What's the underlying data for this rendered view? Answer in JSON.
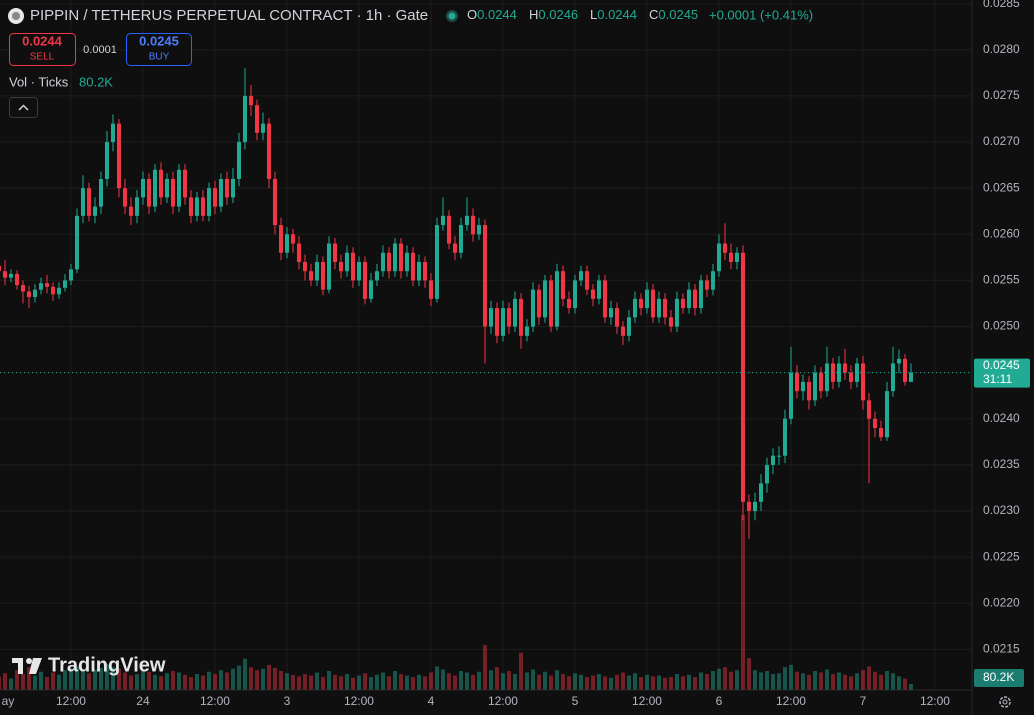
{
  "header": {
    "title": "PIPPIN / TETHERUS PERPETUAL CONTRACT · 1h · Gate",
    "ohlc_labels": [
      "O",
      "H",
      "L",
      "C"
    ],
    "change": "+0.0001 (+0.41%)",
    "sell_price": "0.0244",
    "sell_label": "SELL",
    "spread": "0.0001",
    "buy_price": "0.0245",
    "buy_label": "BUY",
    "volume_title": "Vol · Ticks",
    "countdown": "31:11",
    "watermark": "TradingView"
  },
  "chart_data": {
    "type": "candlestick",
    "up_color": "#22ab94",
    "down_color": "#f23645",
    "grid": true,
    "xlim": [
      0.17,
      162.17
    ],
    "xticks": [
      {
        "value": 0,
        "label": "ay"
      },
      {
        "value": 12,
        "label": "12:00"
      },
      24,
      {
        "value": 36,
        "label": "12:00"
      },
      {
        "value": 48,
        "label": "3"
      },
      {
        "value": 60,
        "label": "12:00"
      },
      {
        "value": 72,
        "label": "4"
      },
      {
        "value": 84,
        "label": "12:00"
      },
      {
        "value": 96,
        "label": "5"
      },
      {
        "value": 108,
        "label": "12:00"
      },
      {
        "value": 120,
        "label": "6"
      },
      {
        "value": 132,
        "label": "12:00"
      },
      {
        "value": 144,
        "label": "7"
      },
      {
        "value": 156,
        "label": "12:00"
      }
    ],
    "ylim": [
      0.02106,
      0.02854
    ],
    "yticks": [
      0.0215,
      {
        "value": 0.022,
        "label": "0.0220"
      },
      0.0225,
      {
        "value": 0.023,
        "label": "0.0230"
      },
      0.0235,
      {
        "value": 0.024,
        "label": "0.0240"
      },
      0.0245,
      {
        "value": 0.025,
        "label": "0.0250"
      },
      0.0255,
      {
        "value": 0.026,
        "label": "0.0260"
      },
      0.0265,
      {
        "value": 0.027,
        "label": "0.0270"
      },
      0.0275,
      {
        "value": 0.028,
        "label": "0.0280"
      },
      0.0285
    ],
    "open": [
      0.02566,
      0.0256,
      0.02553,
      0.02557,
      0.02545,
      0.02538,
      0.02532,
      0.0254,
      0.02547,
      0.02543,
      0.02535,
      0.02542,
      0.0255,
      0.02562,
      0.0262,
      0.0265,
      0.0262,
      0.0263,
      0.0266,
      0.027,
      0.0272,
      0.0265,
      0.0263,
      0.0262,
      0.0264,
      0.0266,
      0.0263,
      0.0267,
      0.0264,
      0.0266,
      0.0263,
      0.0267,
      0.0264,
      0.0262,
      0.0264,
      0.0262,
      0.0265,
      0.0263,
      0.0266,
      0.0264,
      0.0266,
      0.027,
      0.0275,
      0.0274,
      0.0271,
      0.0272,
      0.0266,
      0.0261,
      0.0258,
      0.026,
      0.0259,
      0.0257,
      0.0256,
      0.0255,
      0.0257,
      0.0254,
      0.0259,
      0.0257,
      0.0256,
      0.0258,
      0.0255,
      0.0257,
      0.0253,
      0.0255,
      0.0256,
      0.0258,
      0.0256,
      0.0259,
      0.0256,
      0.0258,
      0.0255,
      0.0257,
      0.0255,
      0.0253,
      0.0261,
      0.0262,
      0.0259,
      0.0258,
      0.0261,
      0.0262,
      0.026,
      0.0261,
      0.025,
      0.0252,
      0.0249,
      0.0252,
      0.025,
      0.0253,
      0.0249,
      0.025,
      0.0254,
      0.0251,
      0.0255,
      0.025,
      0.0256,
      0.0253,
      0.0252,
      0.0255,
      0.0256,
      0.0254,
      0.0253,
      0.0255,
      0.0251,
      0.0252,
      0.025,
      0.0249,
      0.0251,
      0.0253,
      0.0252,
      0.0254,
      0.0251,
      0.0253,
      0.0251,
      0.025,
      0.0253,
      0.0252,
      0.0254,
      0.0252,
      0.0255,
      0.0254,
      0.0256,
      0.0259,
      0.0258,
      0.0257,
      0.0258,
      0.0231,
      0.023,
      0.0231,
      0.0233,
      0.0235,
      0.0236,
      0.0236,
      0.024,
      0.0245,
      0.0243,
      0.0244,
      0.0242,
      0.0245,
      0.0243,
      0.0246,
      0.0244,
      0.0246,
      0.0245,
      0.0244,
      0.0246,
      0.0242,
      0.024,
      0.0239,
      0.0238,
      0.0243,
      0.0246,
      0.02465,
      0.0244
    ],
    "high": [
      0.02575,
      0.02572,
      0.02562,
      0.02561,
      0.0255,
      0.02544,
      0.02546,
      0.02553,
      0.02556,
      0.02548,
      0.02548,
      0.02557,
      0.02568,
      0.02628,
      0.02664,
      0.02656,
      0.0264,
      0.02668,
      0.02712,
      0.0273,
      0.02725,
      0.0266,
      0.0264,
      0.02648,
      0.02668,
      0.02666,
      0.02676,
      0.02678,
      0.02666,
      0.02668,
      0.02676,
      0.02676,
      0.02648,
      0.02646,
      0.02648,
      0.02656,
      0.02658,
      0.02666,
      0.02668,
      0.02672,
      0.0271,
      0.0278,
      0.02762,
      0.02746,
      0.02732,
      0.02726,
      0.02668,
      0.02618,
      0.02608,
      0.02606,
      0.02598,
      0.02578,
      0.02568,
      0.02578,
      0.02576,
      0.02598,
      0.02596,
      0.02578,
      0.02588,
      0.02586,
      0.02576,
      0.02576,
      0.02558,
      0.02568,
      0.02588,
      0.02586,
      0.02596,
      0.02596,
      0.02588,
      0.02586,
      0.02578,
      0.02576,
      0.02558,
      0.02618,
      0.0264,
      0.02626,
      0.02598,
      0.02618,
      0.0264,
      0.02628,
      0.02618,
      0.02616,
      0.02528,
      0.02526,
      0.02528,
      0.02526,
      0.02538,
      0.02536,
      0.02508,
      0.02548,
      0.02546,
      0.02556,
      0.02556,
      0.02568,
      0.02566,
      0.02538,
      0.02556,
      0.02566,
      0.02566,
      0.02546,
      0.02556,
      0.02556,
      0.02528,
      0.02526,
      0.02506,
      0.02518,
      0.02538,
      0.02536,
      0.02548,
      0.02546,
      0.02538,
      0.02536,
      0.02518,
      0.02538,
      0.02536,
      0.02548,
      0.02546,
      0.02556,
      0.02556,
      0.02568,
      0.026,
      0.02612,
      0.0259,
      0.02586,
      0.02588,
      0.02318,
      0.0232,
      0.0234,
      0.02358,
      0.02368,
      0.0237,
      0.0241,
      0.02478,
      0.02458,
      0.02448,
      0.02446,
      0.02458,
      0.02456,
      0.02478,
      0.02466,
      0.02468,
      0.02476,
      0.02458,
      0.02466,
      0.02468,
      0.02428,
      0.02408,
      0.02398,
      0.0244,
      0.02478,
      0.02475,
      0.0247,
      0.0246
    ],
    "low": [
      0.02552,
      0.02545,
      0.02548,
      0.0254,
      0.02525,
      0.0252,
      0.02526,
      0.02535,
      0.02536,
      0.02528,
      0.0253,
      0.02538,
      0.02545,
      0.02558,
      0.02612,
      0.02614,
      0.02612,
      0.02622,
      0.02652,
      0.0269,
      0.0264,
      0.02622,
      0.0261,
      0.02612,
      0.02632,
      0.02622,
      0.02624,
      0.02632,
      0.02634,
      0.02622,
      0.02624,
      0.02632,
      0.02612,
      0.02614,
      0.02614,
      0.02614,
      0.02622,
      0.02624,
      0.02632,
      0.02634,
      0.02652,
      0.02692,
      0.02728,
      0.02702,
      0.02702,
      0.0265,
      0.026,
      0.02572,
      0.02574,
      0.0258,
      0.02562,
      0.0255,
      0.02544,
      0.02544,
      0.02534,
      0.02536,
      0.02562,
      0.02552,
      0.02554,
      0.02542,
      0.02544,
      0.02524,
      0.02526,
      0.02544,
      0.02554,
      0.02552,
      0.02554,
      0.02552,
      0.02554,
      0.02544,
      0.02544,
      0.02542,
      0.02522,
      0.02526,
      0.02604,
      0.02584,
      0.02572,
      0.02574,
      0.02604,
      0.02592,
      0.02594,
      0.0246,
      0.02492,
      0.02482,
      0.02484,
      0.02492,
      0.02494,
      0.02476,
      0.02484,
      0.02494,
      0.02502,
      0.02504,
      0.02494,
      0.02496,
      0.02522,
      0.02514,
      0.02514,
      0.02544,
      0.02534,
      0.02522,
      0.02524,
      0.02504,
      0.02502,
      0.02492,
      0.0248,
      0.02484,
      0.02504,
      0.02512,
      0.02514,
      0.02504,
      0.02504,
      0.02502,
      0.02494,
      0.02494,
      0.02514,
      0.02514,
      0.02512,
      0.02514,
      0.02532,
      0.02534,
      0.02554,
      0.02572,
      0.02562,
      0.02562,
      0.0229,
      0.0227,
      0.0229,
      0.023,
      0.0232,
      0.0234,
      0.0235,
      0.02352,
      0.02394,
      0.02422,
      0.0242,
      0.0241,
      0.02414,
      0.02422,
      0.02424,
      0.02432,
      0.02434,
      0.02442,
      0.02432,
      0.02434,
      0.0241,
      0.0233,
      0.0238,
      0.02376,
      0.02376,
      0.02424,
      0.0245,
      0.02436,
      0.0244
    ],
    "close": [
      0.0256,
      0.02553,
      0.02557,
      0.02545,
      0.02538,
      0.02532,
      0.0254,
      0.02547,
      0.02543,
      0.02535,
      0.02542,
      0.0255,
      0.02562,
      0.0262,
      0.0265,
      0.0262,
      0.0263,
      0.0266,
      0.027,
      0.0272,
      0.0265,
      0.0263,
      0.0262,
      0.0264,
      0.0266,
      0.0263,
      0.0267,
      0.0264,
      0.0266,
      0.0263,
      0.0267,
      0.0264,
      0.0262,
      0.0264,
      0.0262,
      0.0265,
      0.0263,
      0.0266,
      0.0264,
      0.0266,
      0.027,
      0.0275,
      0.0274,
      0.0271,
      0.0272,
      0.0266,
      0.0261,
      0.0258,
      0.026,
      0.0259,
      0.0257,
      0.0256,
      0.0255,
      0.0257,
      0.0254,
      0.0259,
      0.0257,
      0.0256,
      0.0258,
      0.0255,
      0.0257,
      0.0253,
      0.0255,
      0.0256,
      0.0258,
      0.0256,
      0.0259,
      0.0256,
      0.0258,
      0.0255,
      0.0257,
      0.0255,
      0.0253,
      0.0261,
      0.0262,
      0.0259,
      0.0258,
      0.0261,
      0.0262,
      0.026,
      0.0261,
      0.025,
      0.0252,
      0.0249,
      0.0252,
      0.025,
      0.0253,
      0.0249,
      0.025,
      0.0254,
      0.0251,
      0.0255,
      0.025,
      0.0256,
      0.0253,
      0.0252,
      0.0255,
      0.0256,
      0.0254,
      0.0253,
      0.0255,
      0.0251,
      0.0252,
      0.025,
      0.0249,
      0.0251,
      0.0253,
      0.0252,
      0.0254,
      0.0251,
      0.0253,
      0.0251,
      0.025,
      0.0253,
      0.0252,
      0.0254,
      0.0252,
      0.0255,
      0.0254,
      0.0256,
      0.0259,
      0.0258,
      0.0257,
      0.0258,
      0.0231,
      0.023,
      0.0231,
      0.0233,
      0.0235,
      0.0236,
      0.0236,
      0.024,
      0.0245,
      0.0243,
      0.0244,
      0.0242,
      0.0245,
      0.0243,
      0.0246,
      0.0244,
      0.0246,
      0.0245,
      0.0244,
      0.0246,
      0.0242,
      0.024,
      0.0239,
      0.0238,
      0.0243,
      0.0246,
      0.02465,
      0.0244,
      0.0245
    ],
    "volume": [
      180000,
      220000,
      150000,
      260000,
      210000,
      300000,
      190000,
      240000,
      170000,
      230000,
      200000,
      260000,
      280000,
      310000,
      250000,
      220000,
      270000,
      290000,
      340000,
      300000,
      280000,
      230000,
      190000,
      210000,
      260000,
      240000,
      200000,
      180000,
      220000,
      250000,
      230000,
      200000,
      170000,
      210000,
      190000,
      240000,
      210000,
      260000,
      230000,
      280000,
      320000,
      410000,
      300000,
      260000,
      280000,
      330000,
      290000,
      250000,
      220000,
      200000,
      180000,
      210000,
      190000,
      230000,
      170000,
      250000,
      200000,
      180000,
      210000,
      160000,
      190000,
      220000,
      170000,
      200000,
      230000,
      180000,
      250000,
      210000,
      190000,
      170000,
      200000,
      180000,
      230000,
      310000,
      270000,
      220000,
      190000,
      250000,
      230000,
      200000,
      240000,
      590000,
      260000,
      300000,
      220000,
      250000,
      210000,
      490000,
      230000,
      270000,
      200000,
      240000,
      190000,
      260000,
      210000,
      180000,
      220000,
      200000,
      170000,
      190000,
      210000,
      180000,
      160000,
      200000,
      230000,
      190000,
      220000,
      170000,
      200000,
      180000,
      190000,
      160000,
      170000,
      210000,
      180000,
      200000,
      170000,
      230000,
      210000,
      250000,
      280000,
      300000,
      240000,
      260000,
      2300000,
      420000,
      260000,
      230000,
      250000,
      210000,
      220000,
      300000,
      330000,
      240000,
      220000,
      200000,
      250000,
      230000,
      270000,
      210000,
      230000,
      200000,
      180000,
      220000,
      260000,
      310000,
      240000,
      200000,
      250000,
      220000,
      180000,
      150000,
      80200
    ],
    "volume_last_label": "80.2K"
  }
}
